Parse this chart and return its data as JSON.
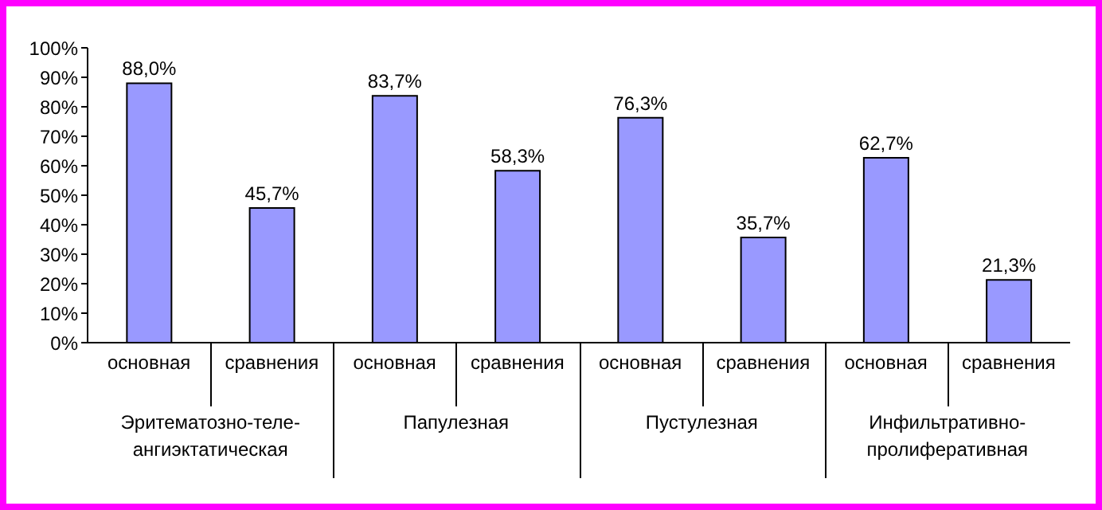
{
  "chart_data": {
    "type": "bar",
    "categories": [
      "основная",
      "сравнения",
      "основная",
      "сравнения",
      "основная",
      "сравнения",
      "основная",
      "сравнения"
    ],
    "values": [
      88.0,
      45.7,
      83.7,
      58.3,
      76.3,
      35.7,
      62.7,
      21.3
    ],
    "value_labels": [
      "88,0%",
      "45,7%",
      "83,7%",
      "58,3%",
      "76,3%",
      "35,7%",
      "62,7%",
      "21,3%"
    ],
    "color": "#9999ff",
    "ylim": [
      0,
      100
    ],
    "yticks": [
      {
        "value": 0,
        "label": "0%"
      },
      {
        "value": 10,
        "label": "10%"
      },
      {
        "value": 20,
        "label": "20%"
      },
      {
        "value": 30,
        "label": "30%"
      },
      {
        "value": 40,
        "label": "40%"
      },
      {
        "value": 50,
        "label": "50%"
      },
      {
        "value": 60,
        "label": "60%"
      },
      {
        "value": 70,
        "label": "70%"
      },
      {
        "value": 80,
        "label": "80%"
      },
      {
        "value": 90,
        "label": "90%"
      },
      {
        "value": 100,
        "label": "100%"
      }
    ],
    "annotations": [
      "Эритематозно-теле-ангиэктатическая",
      "Папулезная",
      "Пустулезная",
      "Инфильтративно-пролиферативная"
    ],
    "grid": false,
    "legend": false
  }
}
